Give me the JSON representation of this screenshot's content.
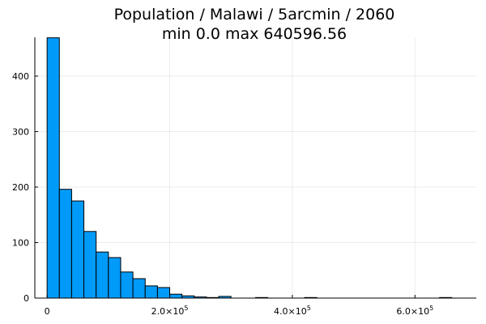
{
  "chart_data": {
    "type": "bar",
    "title_line1": "Population / Malawi / 5arcmin / 2060",
    "title_line2": "min 0.0  max 640596.56",
    "bar_color": "#009af9",
    "bin_width": 20000,
    "bins": [
      {
        "x0": 0,
        "count": 469
      },
      {
        "x0": 20000,
        "count": 196
      },
      {
        "x0": 40000,
        "count": 175
      },
      {
        "x0": 60000,
        "count": 120
      },
      {
        "x0": 80000,
        "count": 83
      },
      {
        "x0": 100000,
        "count": 73
      },
      {
        "x0": 120000,
        "count": 47
      },
      {
        "x0": 140000,
        "count": 35
      },
      {
        "x0": 160000,
        "count": 22
      },
      {
        "x0": 180000,
        "count": 19
      },
      {
        "x0": 200000,
        "count": 7
      },
      {
        "x0": 220000,
        "count": 4
      },
      {
        "x0": 240000,
        "count": 2
      },
      {
        "x0": 260000,
        "count": 1
      },
      {
        "x0": 280000,
        "count": 3
      },
      {
        "x0": 300000,
        "count": 0
      },
      {
        "x0": 320000,
        "count": 0
      },
      {
        "x0": 340000,
        "count": 1
      },
      {
        "x0": 360000,
        "count": 0
      },
      {
        "x0": 380000,
        "count": 0
      },
      {
        "x0": 400000,
        "count": 0
      },
      {
        "x0": 420000,
        "count": 1
      },
      {
        "x0": 440000,
        "count": 0
      },
      {
        "x0": 460000,
        "count": 0
      },
      {
        "x0": 480000,
        "count": 0
      },
      {
        "x0": 500000,
        "count": 0
      },
      {
        "x0": 520000,
        "count": 0
      },
      {
        "x0": 540000,
        "count": 0
      },
      {
        "x0": 560000,
        "count": 0
      },
      {
        "x0": 580000,
        "count": 0
      },
      {
        "x0": 600000,
        "count": 0
      },
      {
        "x0": 620000,
        "count": 0
      },
      {
        "x0": 640000,
        "count": 1
      }
    ],
    "x_ticks": [
      {
        "value": 0,
        "label": "0",
        "exp": ""
      },
      {
        "value": 200000,
        "label": "2.0×10",
        "exp": "5"
      },
      {
        "value": 400000,
        "label": "4.0×10",
        "exp": "5"
      },
      {
        "value": 600000,
        "label": "6.0×10",
        "exp": "5"
      }
    ],
    "y_ticks": [
      0,
      100,
      200,
      300,
      400
    ],
    "xlim": [
      -20000,
      700000
    ],
    "ylim": [
      0,
      470
    ],
    "grid": true,
    "legend": "none"
  }
}
